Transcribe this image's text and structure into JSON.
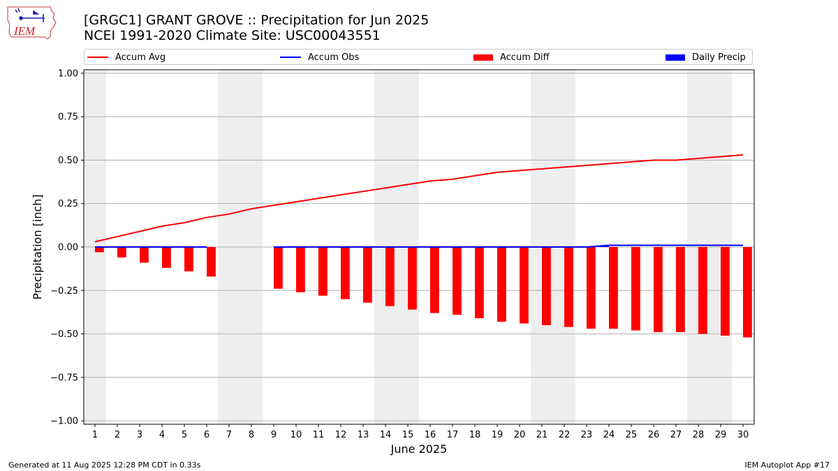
{
  "header": {
    "title_line1": "[GRGC1] GRANT GROVE :: Precipitation for Jun 2025",
    "title_line2": "NCEI 1991-2020 Climate Site: USC00043551",
    "logo_text": "IEM"
  },
  "legend": {
    "items": [
      {
        "label": "Accum Avg",
        "kind": "line",
        "color": "#ff0000"
      },
      {
        "label": "Accum Obs",
        "kind": "line",
        "color": "#0000ff"
      },
      {
        "label": "Accum Diff",
        "kind": "patch",
        "color": "#ff0000"
      },
      {
        "label": "Daily Precip",
        "kind": "patch",
        "color": "#0000ff"
      }
    ],
    "placement": "top, above plot, 4 columns"
  },
  "footer": {
    "left": "Generated at 11 Aug 2025 12:28 PM CDT in 0.33s",
    "right": "IEM Autoplot App #17"
  },
  "chart_data": {
    "type": "bar+line",
    "title": "[GRGC1] GRANT GROVE :: Precipitation for Jun 2025",
    "subtitle": "NCEI 1991-2020 Climate Site: USC00043551",
    "xlabel": "June 2025",
    "ylabel": "Precipitation [inch]",
    "xlim": [
      0.5,
      30.5
    ],
    "ylim": [
      -1.02,
      1.02
    ],
    "grid": "horizontal",
    "weekend_shading": [
      1,
      7,
      8,
      14,
      15,
      21,
      22,
      28,
      29
    ],
    "shading_color": "#eeeeee",
    "x": [
      1,
      2,
      3,
      4,
      5,
      6,
      7,
      8,
      9,
      10,
      11,
      12,
      13,
      14,
      15,
      16,
      17,
      18,
      19,
      20,
      21,
      22,
      23,
      24,
      25,
      26,
      27,
      28,
      29,
      30
    ],
    "x_tick_labels": [
      "1",
      "2",
      "3",
      "4",
      "5",
      "6",
      "7",
      "8",
      "9",
      "10",
      "11",
      "12",
      "13",
      "14",
      "15",
      "16",
      "17",
      "18",
      "19",
      "20",
      "21",
      "22",
      "23",
      "24",
      "25",
      "26",
      "27",
      "28",
      "29",
      "30"
    ],
    "y_ticks": [
      -1.0,
      -0.75,
      -0.5,
      -0.25,
      0.0,
      0.25,
      0.5,
      0.75,
      1.0
    ],
    "y_tick_labels": [
      "−1.00",
      "−0.75",
      "−0.50",
      "−0.25",
      "0.00",
      "0.25",
      "0.50",
      "0.75",
      "1.00"
    ],
    "series": [
      {
        "name": "Accum Avg",
        "kind": "line",
        "color": "#ff0000",
        "values": [
          0.03,
          0.06,
          0.09,
          0.12,
          0.14,
          0.17,
          0.19,
          0.22,
          0.24,
          0.26,
          0.28,
          0.3,
          0.32,
          0.34,
          0.36,
          0.38,
          0.39,
          0.41,
          0.43,
          0.44,
          0.45,
          0.46,
          0.47,
          0.48,
          0.49,
          0.5,
          0.5,
          0.51,
          0.52,
          0.53
        ]
      },
      {
        "name": "Accum Obs",
        "kind": "line",
        "color": "#0000ff",
        "values": [
          0.0,
          0.0,
          0.0,
          0.0,
          0.0,
          0.0,
          null,
          null,
          0.0,
          0.0,
          0.0,
          0.0,
          0.0,
          0.0,
          0.0,
          0.0,
          0.0,
          0.0,
          0.0,
          0.0,
          0.0,
          0.0,
          0.0,
          0.01,
          0.01,
          0.01,
          0.01,
          0.01,
          0.01,
          0.01
        ]
      },
      {
        "name": "Accum Diff",
        "kind": "bar",
        "color": "#ff0000",
        "values": [
          -0.03,
          -0.06,
          -0.09,
          -0.12,
          -0.14,
          -0.17,
          null,
          null,
          -0.24,
          -0.26,
          -0.28,
          -0.3,
          -0.32,
          -0.34,
          -0.36,
          -0.38,
          -0.39,
          -0.41,
          -0.43,
          -0.44,
          -0.45,
          -0.46,
          -0.47,
          -0.47,
          -0.48,
          -0.49,
          -0.49,
          -0.5,
          -0.51,
          -0.52
        ]
      },
      {
        "name": "Daily Precip",
        "kind": "bar",
        "color": "#0000ff",
        "values": [
          0,
          0,
          0,
          0,
          0,
          0,
          null,
          null,
          0,
          0,
          0,
          0,
          0,
          0,
          0,
          0,
          0,
          0,
          0,
          0,
          0,
          0,
          0,
          0.01,
          0,
          0,
          0,
          0,
          0,
          0
        ]
      }
    ]
  }
}
